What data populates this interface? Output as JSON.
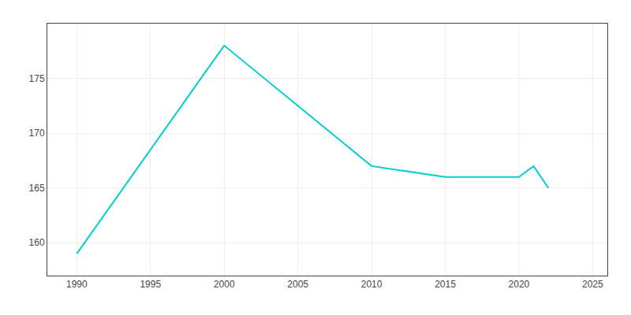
{
  "chart_data": {
    "type": "line",
    "x": [
      1990,
      2000,
      2010,
      2015,
      2020,
      2021,
      2022
    ],
    "values": [
      159,
      178,
      167,
      166,
      166,
      167,
      165
    ],
    "color": "#00CFCF",
    "xlim": [
      1988,
      2026
    ],
    "ylim": [
      157,
      180
    ],
    "xticks": [
      1990,
      1995,
      2000,
      2005,
      2010,
      2015,
      2020,
      2025
    ],
    "yticks": [
      160,
      165,
      170,
      175
    ],
    "grid": true
  }
}
